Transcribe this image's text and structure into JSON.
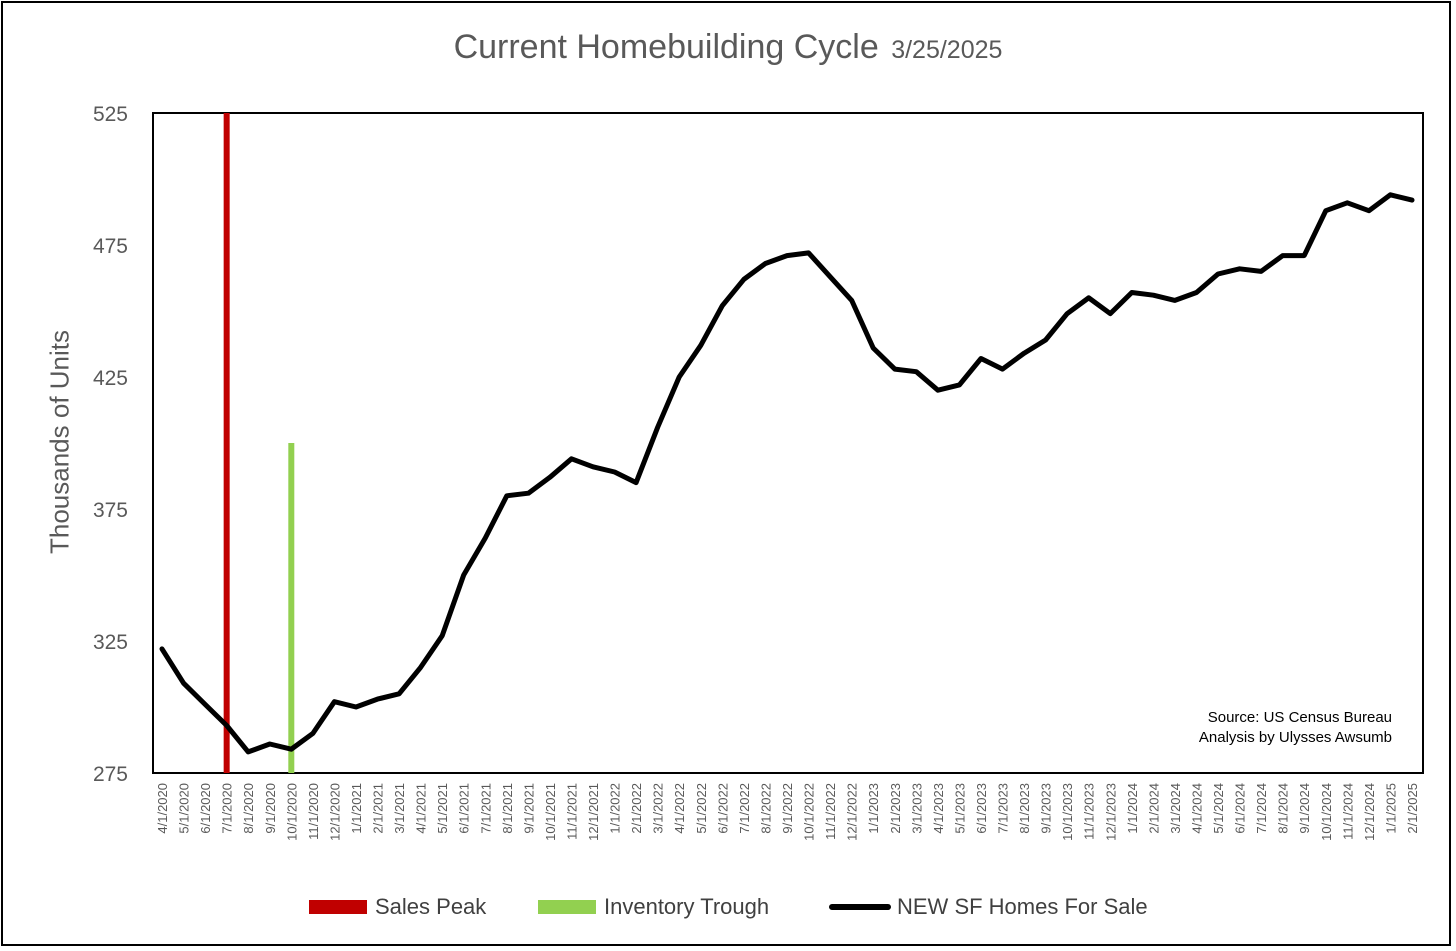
{
  "chart_data": {
    "type": "line",
    "title": "Current Homebuilding Cycle",
    "date_label": "3/25/2025",
    "xlabel": "",
    "ylabel": "Thousands of Units",
    "ylim": [
      275,
      525
    ],
    "yticks": [
      275,
      325,
      375,
      425,
      475,
      525
    ],
    "grid": false,
    "legend_position": "bottom",
    "categories": [
      "4/1/2020",
      "5/1/2020",
      "6/1/2020",
      "7/1/2020",
      "8/1/2020",
      "9/1/2020",
      "10/1/2020",
      "11/1/2020",
      "12/1/2020",
      "1/1/2021",
      "2/1/2021",
      "3/1/2021",
      "4/1/2021",
      "5/1/2021",
      "6/1/2021",
      "7/1/2021",
      "8/1/2021",
      "9/1/2021",
      "10/1/2021",
      "11/1/2021",
      "12/1/2021",
      "1/1/2022",
      "2/1/2022",
      "3/1/2022",
      "4/1/2022",
      "5/1/2022",
      "6/1/2022",
      "7/1/2022",
      "8/1/2022",
      "9/1/2022",
      "10/1/2022",
      "11/1/2022",
      "12/1/2022",
      "1/1/2023",
      "2/1/2023",
      "3/1/2023",
      "4/1/2023",
      "5/1/2023",
      "6/1/2023",
      "7/1/2023",
      "8/1/2023",
      "9/1/2023",
      "10/1/2023",
      "11/1/2023",
      "12/1/2023",
      "1/1/2024",
      "2/1/2024",
      "3/1/2024",
      "4/1/2024",
      "5/1/2024",
      "6/1/2024",
      "7/1/2024",
      "8/1/2024",
      "9/1/2024",
      "10/1/2024",
      "11/1/2024",
      "12/1/2024",
      "1/1/2025",
      "2/1/2025"
    ],
    "series": [
      {
        "name": "NEW SF Homes For Sale",
        "color": "#000000",
        "values": [
          322,
          309,
          301,
          293,
          283,
          286,
          284,
          290,
          302,
          300,
          303,
          305,
          315,
          327,
          350,
          364,
          380,
          381,
          387,
          394,
          391,
          389,
          385,
          406,
          425,
          437,
          452,
          462,
          468,
          471,
          472,
          463,
          454,
          436,
          428,
          427,
          420,
          422,
          432,
          428,
          434,
          439,
          449,
          455,
          449,
          457,
          456,
          454,
          457,
          464,
          466,
          465,
          471,
          471,
          488,
          491,
          488,
          494,
          492
        ]
      }
    ],
    "markers": [
      {
        "name": "Sales Peak",
        "category": "7/1/2020",
        "color": "#C00000",
        "ymin": 275,
        "ymax": 525
      },
      {
        "name": "Inventory Trough",
        "category": "10/1/2020",
        "color": "#92D050",
        "ymin": 275,
        "ymax": 400
      }
    ],
    "annotations": [
      "Source: US Census Bureau",
      "Analysis by Ulysses Awsumb"
    ]
  }
}
